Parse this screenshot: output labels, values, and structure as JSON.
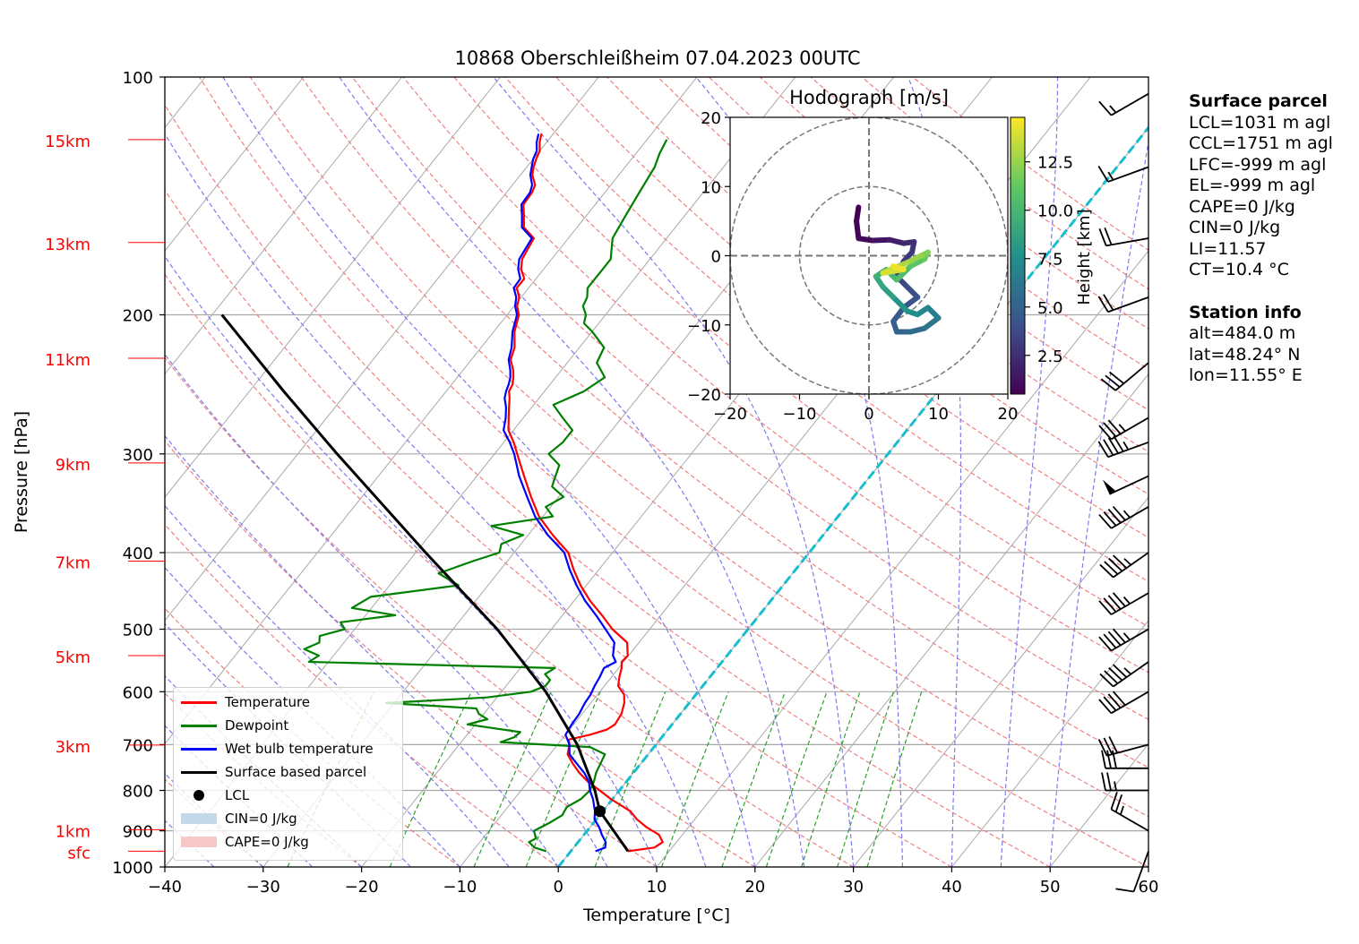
{
  "colors": {
    "temperature": "#ff0000",
    "dewpoint": "#008000",
    "wetbulb": "#0000ff",
    "parcel": "#000000",
    "cin": "#c3d9ea",
    "cape": "#f6c8c8",
    "isotherm_grid": "#a8a8a8",
    "dry_adiabat": "#f08080",
    "moist_adiabat": "#7b7bef",
    "mixing_ratio": "#2ca02c",
    "zero_isotherm": "#17becf",
    "height_labels": "#ff0000"
  },
  "chart_data": [
    {
      "type": "line",
      "subtype": "skew-t log-p",
      "title": "10868 Oberschleißheim 07.04.2023 00UTC",
      "xlabel": "Temperature [°C]",
      "ylabel": "Pressure [hPa]",
      "xlim": [
        -40,
        60
      ],
      "ylim": [
        1000,
        100
      ],
      "y_scale": "log",
      "x_ticks": [
        -40,
        -30,
        -20,
        -10,
        0,
        10,
        20,
        30,
        40,
        50,
        60
      ],
      "x_tick_labels": [
        "−40",
        "−30",
        "−20",
        "−10",
        "0",
        "10",
        "20",
        "30",
        "40",
        "50",
        "60"
      ],
      "y_ticks": [
        1000,
        900,
        800,
        700,
        600,
        500,
        400,
        300,
        200,
        100
      ],
      "y_tick_labels": [
        "1000",
        "900",
        "800",
        "700",
        "600",
        "500",
        "400",
        "300",
        "200",
        "100"
      ],
      "height_markers": [
        {
          "label": "sfc",
          "pressure": 955
        },
        {
          "label": "1km",
          "pressure": 897
        },
        {
          "label": "3km",
          "pressure": 701
        },
        {
          "label": "5km",
          "pressure": 540
        },
        {
          "label": "7km",
          "pressure": 410
        },
        {
          "label": "9km",
          "pressure": 308
        },
        {
          "label": "11km",
          "pressure": 227
        },
        {
          "label": "13km",
          "pressure": 162
        },
        {
          "label": "15km",
          "pressure": 120
        }
      ],
      "grid": true,
      "legend_position": "lower-left",
      "series": [
        {
          "name": "Temperature",
          "pressure": [
            955,
            945,
            930,
            910,
            890,
            870,
            850,
            820,
            800,
            780,
            760,
            740,
            720,
            700,
            690,
            680,
            670,
            660,
            640,
            620,
            605,
            590,
            575,
            560,
            550,
            540,
            520,
            500,
            480,
            460,
            440,
            420,
            400,
            380,
            360,
            340,
            320,
            300,
            290,
            280,
            270,
            262,
            255,
            250,
            245,
            240,
            235,
            228,
            220,
            210,
            200,
            195,
            190,
            185,
            180,
            175,
            170,
            160,
            155,
            150,
            145,
            140,
            137,
            133,
            130,
            127,
            124,
            121,
            118
          ],
          "values": [
            5.8,
            8.2,
            8.6,
            7.6,
            5.7,
            4.1,
            2.8,
            -0.2,
            -2.0,
            -3.9,
            -5.5,
            -6.9,
            -8.2,
            -8.8,
            -9.3,
            -7.5,
            -6.2,
            -5.8,
            -6.0,
            -6.6,
            -7.3,
            -8.6,
            -9.2,
            -9.7,
            -10.2,
            -10.1,
            -11.2,
            -13.8,
            -16.0,
            -18.4,
            -20.6,
            -22.6,
            -24.5,
            -27.5,
            -30.4,
            -32.8,
            -35.2,
            -37.7,
            -39.0,
            -40.5,
            -41.5,
            -42.3,
            -43.0,
            -43.6,
            -43.8,
            -44.3,
            -44.9,
            -46.0,
            -46.6,
            -47.9,
            -48.8,
            -49.7,
            -50.2,
            -51.2,
            -51.2,
            -52.3,
            -53.0,
            -53.5,
            -55.4,
            -56.3,
            -57.3,
            -57.4,
            -57.7,
            -58.8,
            -59.3,
            -59.7,
            -60.0,
            -60.7,
            -61.2
          ]
        },
        {
          "name": "Dewpoint",
          "pressure": [
            955,
            945,
            930,
            920,
            900,
            880,
            860,
            840,
            820,
            800,
            780,
            760,
            740,
            720,
            705,
            695,
            685,
            675,
            660,
            650,
            640,
            630,
            620,
            610,
            600,
            590,
            580,
            570,
            560,
            550,
            540,
            530,
            520,
            510,
            500,
            490,
            480,
            470,
            455,
            440,
            425,
            410,
            400,
            390,
            380,
            370,
            360,
            350,
            340,
            330,
            320,
            310,
            300,
            290,
            280,
            270,
            260,
            250,
            240,
            230,
            220,
            210,
            205,
            200,
            195,
            190,
            185,
            180,
            175,
            170,
            160,
            150,
            140,
            130,
            125,
            120
          ],
          "values": [
            -2.5,
            -4.0,
            -5.0,
            -4.6,
            -5.4,
            -4.5,
            -3.8,
            -4.0,
            -3.2,
            -3.0,
            -3.3,
            -3.8,
            -4.1,
            -4.4,
            -6.5,
            -16.0,
            -15.0,
            -14.8,
            -20.8,
            -19.2,
            -20.5,
            -21.2,
            -30.8,
            -21.0,
            -17.0,
            -16.0,
            -16.0,
            -17.0,
            -16.5,
            -42.0,
            -41.5,
            -43.5,
            -42.5,
            -43.0,
            -41.0,
            -42.0,
            -37.0,
            -42.0,
            -41.0,
            -33.0,
            -36.0,
            -33.5,
            -31.5,
            -32.0,
            -30.5,
            -34.5,
            -29.0,
            -30.5,
            -29.5,
            -31.5,
            -32.0,
            -32.5,
            -34.5,
            -34.0,
            -34.0,
            -36.0,
            -38.0,
            -36.0,
            -35.0,
            -37.0,
            -37.5,
            -40.0,
            -41.5,
            -42.0,
            -43.0,
            -43.3,
            -44.0,
            -44.0,
            -44.0,
            -44.0,
            -45.5,
            -46.0,
            -46.5,
            -47.0,
            -47.6,
            -48.0
          ]
        },
        {
          "name": "Wet bulb temperature",
          "pressure": [
            955,
            945,
            930,
            910,
            890,
            870,
            850,
            820,
            800,
            780,
            760,
            740,
            720,
            700,
            680,
            660,
            640,
            620,
            605,
            590,
            575,
            560,
            550,
            540,
            520,
            500,
            480,
            460,
            440,
            420,
            400,
            380,
            360,
            340,
            320,
            300,
            290,
            280,
            270,
            262,
            255,
            250,
            245,
            240,
            235,
            228,
            220,
            210,
            200,
            195,
            190,
            185,
            180,
            175,
            170,
            160,
            155,
            150,
            145,
            140,
            137,
            133,
            130,
            127,
            124,
            121,
            118
          ],
          "values": [
            2.5,
            3.2,
            2.8,
            1.8,
            0.9,
            -0.2,
            -0.8,
            -2.0,
            -3.0,
            -3.8,
            -5.0,
            -6.5,
            -8.0,
            -8.8,
            -10.0,
            -10.2,
            -10.3,
            -10.6,
            -10.7,
            -11.0,
            -11.2,
            -11.5,
            -10.8,
            -11.6,
            -12.5,
            -14.5,
            -16.6,
            -18.9,
            -21.0,
            -23.0,
            -24.9,
            -28.0,
            -30.8,
            -33.2,
            -35.7,
            -38.0,
            -39.4,
            -41.0,
            -41.8,
            -42.6,
            -43.5,
            -43.9,
            -44.2,
            -44.6,
            -45.2,
            -46.2,
            -46.9,
            -48.1,
            -49.0,
            -49.9,
            -50.5,
            -51.5,
            -51.6,
            -52.6,
            -53.3,
            -53.7,
            -55.6,
            -56.5,
            -57.5,
            -57.6,
            -58.0,
            -59.0,
            -59.5,
            -60.0,
            -60.3,
            -61.0,
            -61.5
          ]
        },
        {
          "name": "Surface based parcel",
          "pressure": [
            955,
            850,
            800,
            700,
            600,
            500,
            400,
            300,
            250,
            200
          ],
          "values": [
            5.8,
            -0.3,
            -2.5,
            -8.0,
            -15.5,
            -25.5,
            -39.0,
            -56.0,
            -66.5,
            -79.0
          ]
        },
        {
          "name": "LCL",
          "pressure": [
            850
          ],
          "values": [
            -0.3
          ]
        },
        {
          "name": "CIN=0 J/kg",
          "pressure": [],
          "values": []
        },
        {
          "name": "CAPE=0 J/kg",
          "pressure": [],
          "values": []
        }
      ],
      "wind_barbs": [
        {
          "pressure": 955,
          "speed_kt": 10,
          "direction_deg": 200
        },
        {
          "pressure": 900,
          "speed_kt": 25,
          "direction_deg": 300
        },
        {
          "pressure": 800,
          "speed_kt": 25,
          "direction_deg": 270
        },
        {
          "pressure": 750,
          "speed_kt": 30,
          "direction_deg": 270
        },
        {
          "pressure": 700,
          "speed_kt": 30,
          "direction_deg": 255
        },
        {
          "pressure": 600,
          "speed_kt": 40,
          "direction_deg": 240
        },
        {
          "pressure": 550,
          "speed_kt": 45,
          "direction_deg": 235
        },
        {
          "pressure": 500,
          "speed_kt": 45,
          "direction_deg": 240
        },
        {
          "pressure": 450,
          "speed_kt": 45,
          "direction_deg": 240
        },
        {
          "pressure": 400,
          "speed_kt": 45,
          "direction_deg": 235
        },
        {
          "pressure": 350,
          "speed_kt": 45,
          "direction_deg": 240
        },
        {
          "pressure": 320,
          "speed_kt": 50,
          "direction_deg": 245
        },
        {
          "pressure": 290,
          "speed_kt": 45,
          "direction_deg": 250
        },
        {
          "pressure": 270,
          "speed_kt": 35,
          "direction_deg": 240
        },
        {
          "pressure": 230,
          "speed_kt": 30,
          "direction_deg": 230
        },
        {
          "pressure": 190,
          "speed_kt": 20,
          "direction_deg": 250
        },
        {
          "pressure": 160,
          "speed_kt": 20,
          "direction_deg": 260
        },
        {
          "pressure": 130,
          "speed_kt": 15,
          "direction_deg": 250
        },
        {
          "pressure": 105,
          "speed_kt": 15,
          "direction_deg": 240
        }
      ]
    },
    {
      "type": "line",
      "subtype": "hodograph",
      "title": "Hodograph [m/s]",
      "xlim": [
        -20,
        20
      ],
      "ylim": [
        -20,
        20
      ],
      "x_ticks": [
        -20,
        -10,
        0,
        10,
        20
      ],
      "x_tick_labels": [
        "−20",
        "−10",
        "0",
        "10",
        "20"
      ],
      "y_ticks": [
        -20,
        -10,
        0,
        10,
        20
      ],
      "y_tick_labels": [
        "−20",
        "−10",
        "0",
        "10",
        "20"
      ],
      "range_rings_ms": [
        10,
        20
      ],
      "colorbar_label": "Height [km]",
      "colorbar_ticks": [
        2.5,
        5.0,
        7.5,
        10.0,
        12.5
      ],
      "colorbar_tick_labels": [
        "2.5",
        "5.0",
        "7.5",
        "10.0",
        "12.5"
      ],
      "colorbar_range": [
        0.5,
        14.8
      ],
      "colormap": [
        "#440154",
        "#3b528b",
        "#21918c",
        "#5ec962",
        "#fde725"
      ],
      "points": [
        {
          "u": -1.5,
          "v": 7.0,
          "h": 0.5
        },
        {
          "u": -1.8,
          "v": 5.0,
          "h": 0.7
        },
        {
          "u": -1.5,
          "v": 2.5,
          "h": 0.9
        },
        {
          "u": 0.5,
          "v": 2.2,
          "h": 1.3
        },
        {
          "u": 3.0,
          "v": 2.3,
          "h": 1.8
        },
        {
          "u": 5.0,
          "v": 1.8,
          "h": 2.3
        },
        {
          "u": 6.5,
          "v": 2.0,
          "h": 2.7
        },
        {
          "u": 6.2,
          "v": 0.5,
          "h": 3.0
        },
        {
          "u": 5.0,
          "v": -0.8,
          "h": 3.3
        },
        {
          "u": 4.0,
          "v": -3.0,
          "h": 3.6
        },
        {
          "u": 5.5,
          "v": -4.5,
          "h": 3.9
        },
        {
          "u": 7.0,
          "v": -6.0,
          "h": 4.2
        },
        {
          "u": 5.0,
          "v": -7.5,
          "h": 4.5
        },
        {
          "u": 3.5,
          "v": -9.5,
          "h": 4.8
        },
        {
          "u": 4.0,
          "v": -11.0,
          "h": 5.1
        },
        {
          "u": 6.0,
          "v": -11.0,
          "h": 5.5
        },
        {
          "u": 8.0,
          "v": -10.5,
          "h": 6.0
        },
        {
          "u": 10.0,
          "v": -9.0,
          "h": 6.5
        },
        {
          "u": 8.5,
          "v": -7.5,
          "h": 7.0
        },
        {
          "u": 7.0,
          "v": -8.5,
          "h": 7.5
        },
        {
          "u": 5.5,
          "v": -8.0,
          "h": 8.0
        },
        {
          "u": 3.5,
          "v": -6.0,
          "h": 8.5
        },
        {
          "u": 2.0,
          "v": -4.5,
          "h": 9.0
        },
        {
          "u": 1.0,
          "v": -3.0,
          "h": 9.5
        },
        {
          "u": 2.5,
          "v": -2.0,
          "h": 10.0
        },
        {
          "u": 4.0,
          "v": -3.5,
          "h": 10.5
        },
        {
          "u": 6.0,
          "v": -1.5,
          "h": 11.0
        },
        {
          "u": 8.0,
          "v": -0.5,
          "h": 11.5
        },
        {
          "u": 8.5,
          "v": 0.5,
          "h": 12.0
        },
        {
          "u": 7.5,
          "v": 0.0,
          "h": 12.5
        },
        {
          "u": 5.5,
          "v": -1.0,
          "h": 13.0
        },
        {
          "u": 3.5,
          "v": -1.8,
          "h": 13.5
        },
        {
          "u": 2.0,
          "v": -2.5,
          "h": 14.0
        },
        {
          "u": 5.0,
          "v": -2.0,
          "h": 14.5
        },
        {
          "u": 3.5,
          "v": -1.5,
          "h": 14.8
        }
      ]
    }
  ],
  "legend": {
    "items": [
      {
        "label": "Temperature",
        "symbol": "line",
        "color": "#ff0000"
      },
      {
        "label": "Dewpoint",
        "symbol": "line",
        "color": "#008000"
      },
      {
        "label": "Wet bulb temperature",
        "symbol": "line",
        "color": "#0000ff"
      },
      {
        "label": "Surface based parcel",
        "symbol": "line",
        "color": "#000000"
      },
      {
        "label": "LCL",
        "symbol": "dot",
        "color": "#000000"
      },
      {
        "label": "CIN=0 J/kg",
        "symbol": "patch",
        "color": "#c3d9ea"
      },
      {
        "label": "CAPE=0 J/kg",
        "symbol": "patch",
        "color": "#f6c8c8"
      }
    ]
  },
  "sidebar": {
    "parcel_title": "Surface parcel",
    "parcel_lines": [
      "LCL=1031 m agl",
      "CCL=1751 m agl",
      "LFC=-999 m agl",
      "EL=-999 m agl",
      "CAPE=0 J/kg",
      "CIN=0 J/kg",
      "LI=11.57",
      "CT=10.4 °C"
    ],
    "station_title": "Station info",
    "station_lines": [
      "alt=484.0 m",
      "lat=48.24° N",
      "lon=11.55° E"
    ]
  }
}
